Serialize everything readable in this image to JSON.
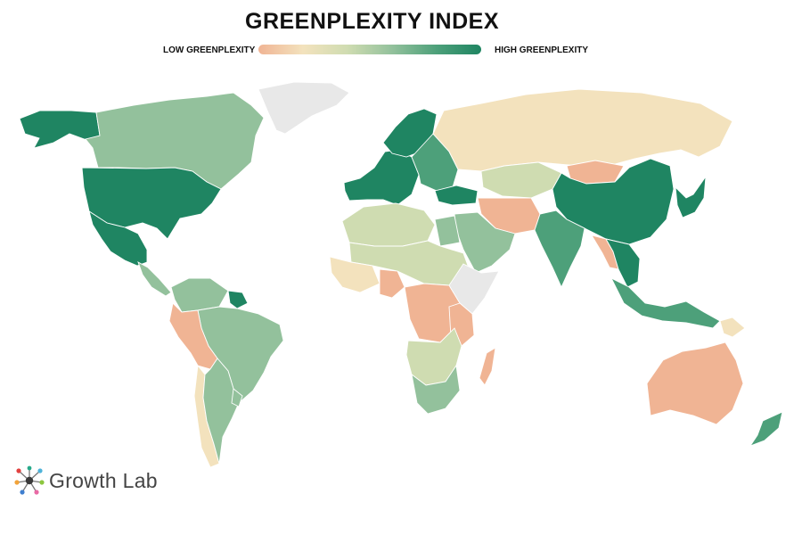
{
  "title": "GREENPLEXITY INDEX",
  "legend": {
    "low_label": "LOW GREENPLEXITY",
    "high_label": "HIGH GREENPLEXITY",
    "colors": [
      "#f0b494",
      "#f3e2bd",
      "#cfdcb1",
      "#93c19c",
      "#4da07a",
      "#1f8562"
    ]
  },
  "no_data_color": "#e8e8e8",
  "logo": {
    "text": "Growth Lab"
  },
  "regions": [
    {
      "name": "alaska",
      "level": 5
    },
    {
      "name": "canada",
      "level": 3
    },
    {
      "name": "greenland",
      "level": "na"
    },
    {
      "name": "united-states",
      "level": 5
    },
    {
      "name": "mexico",
      "level": 5
    },
    {
      "name": "central-america",
      "level": 3
    },
    {
      "name": "colombia-venezuela",
      "level": 3
    },
    {
      "name": "guyana-suriname",
      "level": 5
    },
    {
      "name": "brazil",
      "level": 3
    },
    {
      "name": "peru-bolivia",
      "level": 0
    },
    {
      "name": "chile",
      "level": 1
    },
    {
      "name": "argentina",
      "level": 3
    },
    {
      "name": "uruguay",
      "level": 3
    },
    {
      "name": "western-europe",
      "level": 5
    },
    {
      "name": "scandinavia",
      "level": 5
    },
    {
      "name": "eastern-europe",
      "level": 4
    },
    {
      "name": "turkey",
      "level": 5
    },
    {
      "name": "russia",
      "level": 1
    },
    {
      "name": "central-asia",
      "level": 2
    },
    {
      "name": "mongolia",
      "level": 0
    },
    {
      "name": "china",
      "level": 5
    },
    {
      "name": "korea-japan",
      "level": 5
    },
    {
      "name": "iran-afghanistan",
      "level": 0
    },
    {
      "name": "arabia",
      "level": 3
    },
    {
      "name": "india",
      "level": 4
    },
    {
      "name": "southeast-asia",
      "level": 0
    },
    {
      "name": "thailand-vietnam",
      "level": 5
    },
    {
      "name": "indonesia-philippines",
      "level": 4
    },
    {
      "name": "north-africa",
      "level": 2
    },
    {
      "name": "egypt",
      "level": 3
    },
    {
      "name": "sahel",
      "level": 2
    },
    {
      "name": "west-africa",
      "level": 1
    },
    {
      "name": "nigeria",
      "level": 0
    },
    {
      "name": "central-africa",
      "level": 0
    },
    {
      "name": "horn-of-africa",
      "level": "na"
    },
    {
      "name": "east-africa",
      "level": 0
    },
    {
      "name": "southern-africa",
      "level": 2
    },
    {
      "name": "south-africa",
      "level": 3
    },
    {
      "name": "madagascar",
      "level": 0
    },
    {
      "name": "australia",
      "level": 0
    },
    {
      "name": "new-zealand",
      "level": 4
    },
    {
      "name": "papua-new-guinea",
      "level": 1
    }
  ]
}
